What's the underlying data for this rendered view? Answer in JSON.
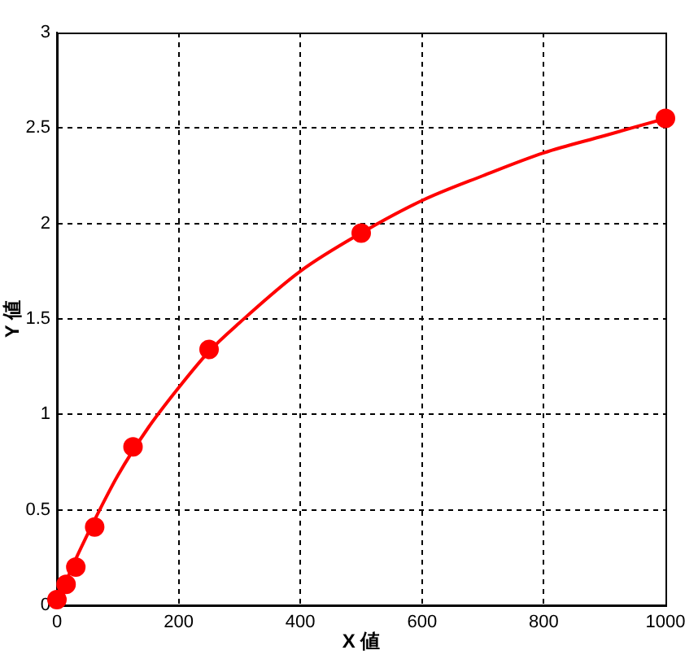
{
  "chart_data": {
    "type": "scatter",
    "xlabel": "X 値",
    "ylabel": "Y 値",
    "xlim": [
      0,
      1000
    ],
    "xticks": [
      0,
      200,
      400,
      600,
      800,
      1000
    ],
    "ylim": [
      0,
      3
    ],
    "yticks": [
      0,
      0.5,
      1,
      1.5,
      2,
      2.5,
      3
    ],
    "grid": true,
    "series": [
      {
        "type": "scatter",
        "color": "#ff0000",
        "marker": "circle",
        "x": [
          0,
          15,
          31,
          62,
          125,
          250,
          500,
          1000
        ],
        "values": [
          0.03,
          0.11,
          0.2,
          0.41,
          0.83,
          1.34,
          1.95,
          2.55
        ]
      },
      {
        "type": "line",
        "color": "#ff0000",
        "marker": "none",
        "line_style": "solid",
        "x": [
          0,
          25,
          50,
          75,
          100,
          150,
          200,
          250,
          300,
          400,
          500,
          600,
          700,
          800,
          900,
          1000
        ],
        "values": [
          0,
          0.2,
          0.37,
          0.53,
          0.68,
          0.93,
          1.14,
          1.33,
          1.48,
          1.75,
          1.95,
          2.12,
          2.25,
          2.37,
          2.46,
          2.55
        ]
      }
    ]
  }
}
